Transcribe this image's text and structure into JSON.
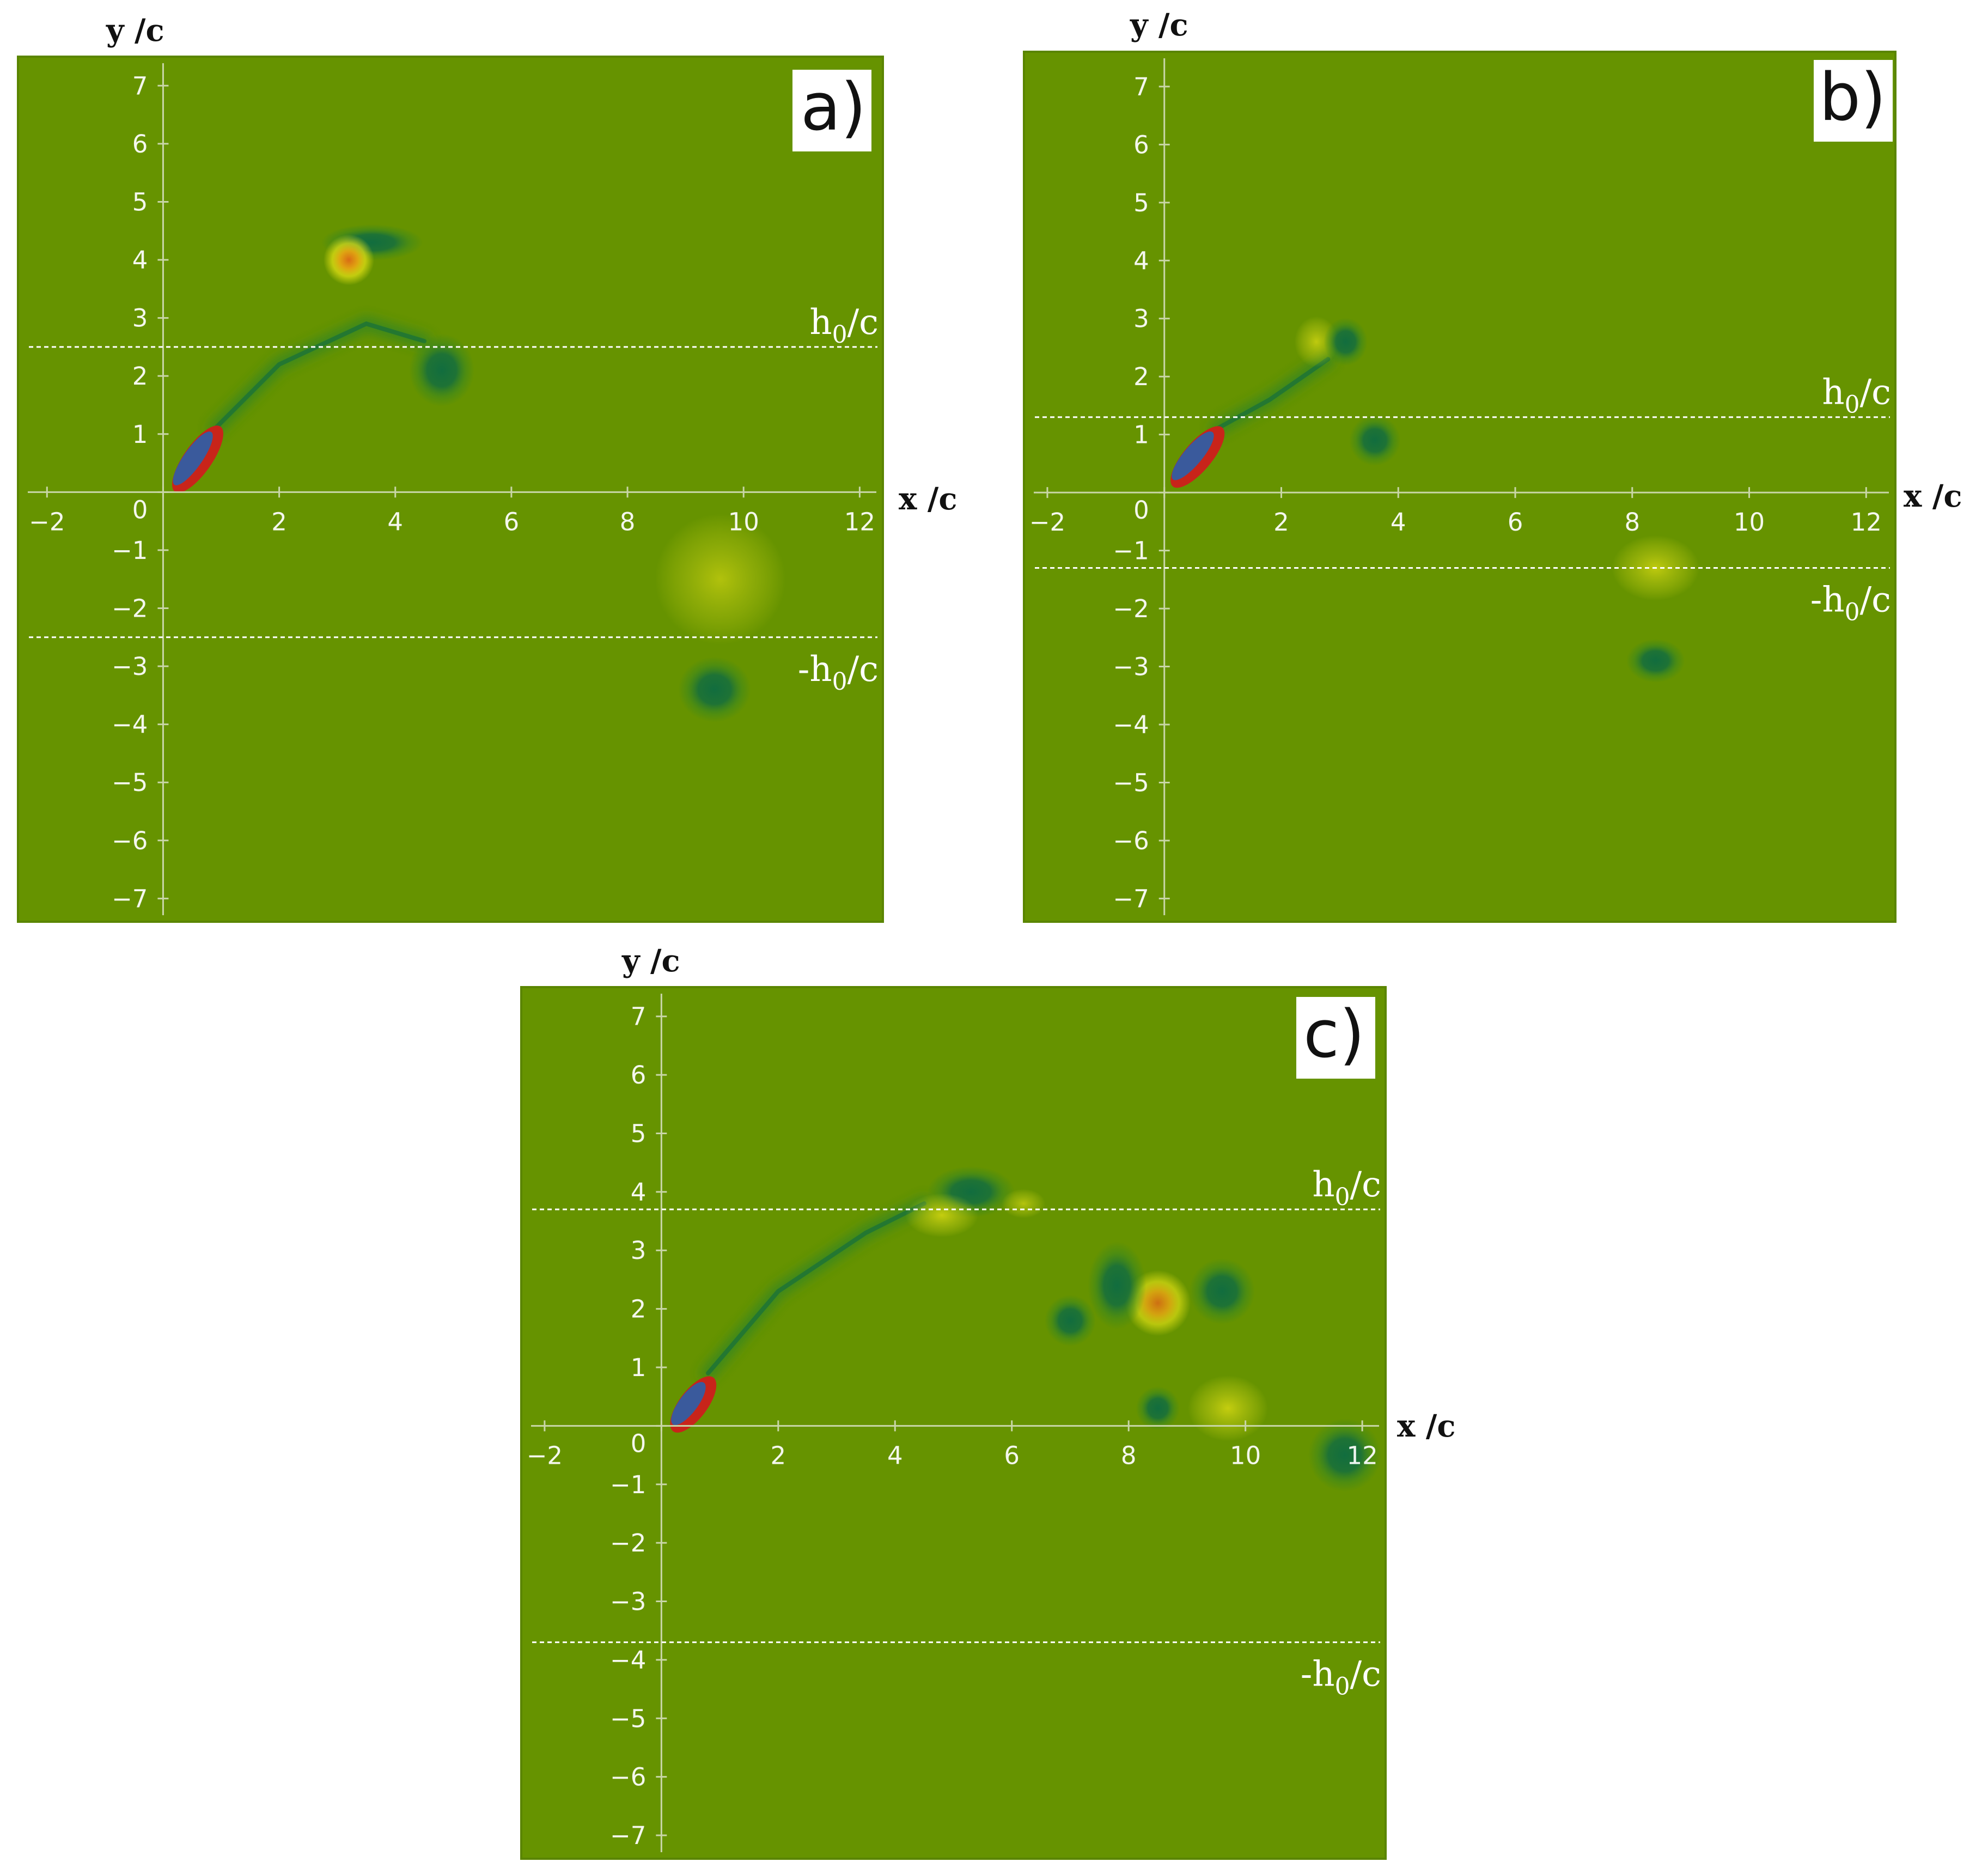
{
  "figure": {
    "background_color": "#669300",
    "axis_color": "#c9d6a8",
    "line_color": "#ffffff",
    "colormap": {
      "field": "#669300",
      "negative_core": "#0d6b42",
      "negative_mid": "#2f8525",
      "positive_mid": "#e9e415",
      "positive_core": "#d96b14",
      "body_red": "#c8241a",
      "body_blue": "#3a5a9c"
    }
  },
  "panels": [
    {
      "id": "a",
      "label": "a)",
      "x_axis_title": "x /c",
      "y_axis_title": "y /c",
      "upper_line_label": "h",
      "upper_line_sub": "0",
      "upper_line_tail": "/c",
      "lower_line_label": "-h",
      "lower_line_sub": "0",
      "lower_line_tail": "/c",
      "h0": 2.5,
      "xlim": [
        -2.5,
        12.4
      ],
      "ylim": [
        -7.4,
        7.5
      ],
      "x_ticks": [
        -2,
        0,
        2,
        4,
        6,
        8,
        10,
        12
      ],
      "y_ticks": [
        7,
        6,
        5,
        4,
        3,
        2,
        1,
        0,
        -1,
        -2,
        -3,
        -4,
        -5,
        -6,
        -7
      ],
      "x_tick_labels": [
        "−2",
        "0",
        "2",
        "4",
        "6",
        "8",
        "10",
        "12"
      ],
      "y_tick_labels": [
        "7",
        "6",
        "5",
        "4",
        "3",
        "2",
        "1",
        "0",
        "−1",
        "−2",
        "−3",
        "−4",
        "−5",
        "−6",
        "−7"
      ],
      "airfoil": {
        "x1": 0.2,
        "y1": 0.1,
        "x2": 0.9,
        "y2": 1.1
      },
      "wake": [
        [
          0.9,
          1.1
        ],
        [
          2.0,
          2.2
        ],
        [
          3.5,
          2.9
        ],
        [
          4.5,
          2.6
        ]
      ],
      "vortices": [
        {
          "x": 3.6,
          "y": 4.3,
          "rx": 0.7,
          "ry": 0.25,
          "sign": "negative"
        },
        {
          "x": 3.2,
          "y": 4.0,
          "rx": 0.35,
          "ry": 0.35,
          "sign": "positive",
          "strength": 1.0
        },
        {
          "x": 4.8,
          "y": 2.1,
          "rx": 0.45,
          "ry": 0.5,
          "sign": "negative"
        },
        {
          "x": 9.6,
          "y": -1.5,
          "rx": 0.9,
          "ry": 0.9,
          "sign": "positive",
          "strength": 0.35
        },
        {
          "x": 9.5,
          "y": -3.4,
          "rx": 0.5,
          "ry": 0.45,
          "sign": "negative"
        }
      ]
    },
    {
      "id": "b",
      "label": "b)",
      "x_axis_title": "x /c",
      "y_axis_title": "y /c",
      "upper_line_label": "h",
      "upper_line_sub": "0",
      "upper_line_tail": "/c",
      "lower_line_label": "-h",
      "lower_line_sub": "0",
      "lower_line_tail": "/c",
      "h0": 1.3,
      "xlim": [
        -2.4,
        12.5
      ],
      "ylim": [
        -7.4,
        7.6
      ],
      "x_ticks": [
        -2,
        0,
        2,
        4,
        6,
        8,
        10,
        12
      ],
      "y_ticks": [
        7,
        6,
        5,
        4,
        3,
        2,
        1,
        0,
        -1,
        -2,
        -3,
        -4,
        -5,
        -6,
        -7
      ],
      "x_tick_labels": [
        "−2",
        "0",
        "2",
        "4",
        "6",
        "8",
        "10",
        "12"
      ],
      "y_tick_labels": [
        "7",
        "6",
        "5",
        "4",
        "3",
        "2",
        "1",
        "0",
        "−1",
        "−2",
        "−3",
        "−4",
        "−5",
        "−6",
        "−7"
      ],
      "airfoil": {
        "x1": 0.15,
        "y1": 0.2,
        "x2": 0.9,
        "y2": 1.1
      },
      "wake": [
        [
          0.9,
          1.1
        ],
        [
          1.8,
          1.6
        ],
        [
          2.8,
          2.3
        ]
      ],
      "vortices": [
        {
          "x": 2.6,
          "y": 2.6,
          "rx": 0.3,
          "ry": 0.35,
          "sign": "positive",
          "strength": 0.6
        },
        {
          "x": 3.1,
          "y": 2.6,
          "rx": 0.3,
          "ry": 0.33,
          "sign": "negative"
        },
        {
          "x": 3.6,
          "y": 0.9,
          "rx": 0.35,
          "ry": 0.35,
          "sign": "negative"
        },
        {
          "x": 8.4,
          "y": -1.3,
          "rx": 0.6,
          "ry": 0.45,
          "sign": "positive",
          "strength": 0.6
        },
        {
          "x": 8.4,
          "y": -2.9,
          "rx": 0.4,
          "ry": 0.3,
          "sign": "negative"
        }
      ]
    },
    {
      "id": "c",
      "label": "c)",
      "x_axis_title": "x /c",
      "y_axis_title": "y /c",
      "upper_line_label": "h",
      "upper_line_sub": "0",
      "upper_line_tail": "/c",
      "lower_line_label": "-h",
      "lower_line_sub": "0",
      "lower_line_tail": "/c",
      "h0": 3.7,
      "xlim": [
        -2.4,
        12.4
      ],
      "ylim": [
        -7.4,
        7.5
      ],
      "x_ticks": [
        -2,
        0,
        2,
        4,
        6,
        8,
        10,
        12
      ],
      "y_ticks": [
        7,
        6,
        5,
        4,
        3,
        2,
        1,
        0,
        -1,
        -2,
        -3,
        -4,
        -5,
        -6,
        -7
      ],
      "x_tick_labels": [
        "−2",
        "0",
        "2",
        "4",
        "6",
        "8",
        "10",
        "12"
      ],
      "y_tick_labels": [
        "7",
        "6",
        "5",
        "4",
        "3",
        "2",
        "1",
        "0",
        "−1",
        "−2",
        "−3",
        "−4",
        "−5",
        "−6",
        "−7"
      ],
      "airfoil": {
        "x1": 0.2,
        "y1": 0.0,
        "x2": 0.8,
        "y2": 0.8
      },
      "wake": [
        [
          0.8,
          0.9
        ],
        [
          2.0,
          2.3
        ],
        [
          3.5,
          3.3
        ],
        [
          4.5,
          3.8
        ]
      ],
      "vortices": [
        {
          "x": 5.3,
          "y": 4.0,
          "rx": 0.6,
          "ry": 0.35,
          "sign": "negative"
        },
        {
          "x": 4.8,
          "y": 3.6,
          "rx": 0.5,
          "ry": 0.3,
          "sign": "positive",
          "strength": 0.7
        },
        {
          "x": 6.2,
          "y": 3.8,
          "rx": 0.3,
          "ry": 0.2,
          "sign": "positive",
          "strength": 0.4
        },
        {
          "x": 8.5,
          "y": 2.1,
          "rx": 0.45,
          "ry": 0.45,
          "sign": "positive",
          "strength": 0.8
        },
        {
          "x": 7.8,
          "y": 2.4,
          "rx": 0.4,
          "ry": 0.6,
          "sign": "negative"
        },
        {
          "x": 9.6,
          "y": 2.3,
          "rx": 0.45,
          "ry": 0.45,
          "sign": "negative"
        },
        {
          "x": 7.0,
          "y": 1.8,
          "rx": 0.35,
          "ry": 0.35,
          "sign": "negative"
        },
        {
          "x": 9.7,
          "y": 0.3,
          "rx": 0.55,
          "ry": 0.45,
          "sign": "positive",
          "strength": 0.7
        },
        {
          "x": 8.5,
          "y": 0.3,
          "rx": 0.3,
          "ry": 0.3,
          "sign": "negative"
        },
        {
          "x": 11.7,
          "y": -0.5,
          "rx": 0.5,
          "ry": 0.5,
          "sign": "negative"
        }
      ]
    }
  ]
}
